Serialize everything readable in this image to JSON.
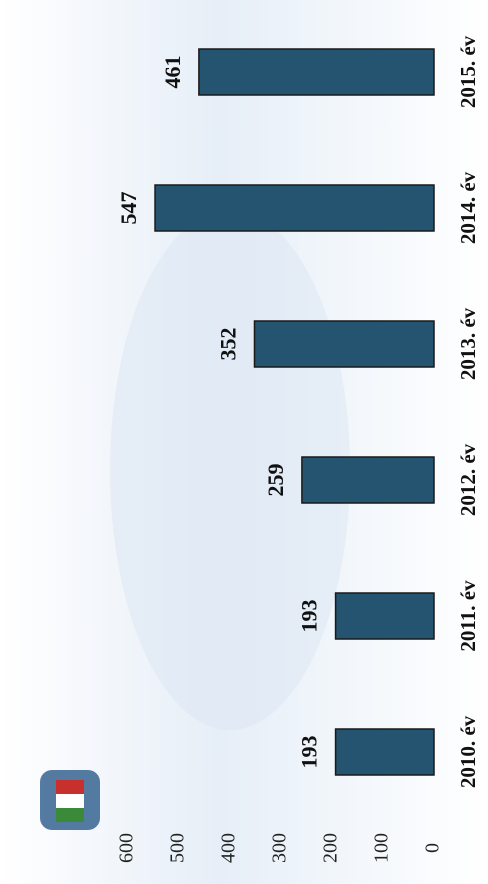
{
  "chart_data": {
    "type": "bar",
    "orientation": "rotated",
    "categories": [
      "2010. év",
      "2011. év",
      "2012. év",
      "2013. év",
      "2014. év",
      "2015. év"
    ],
    "values": [
      193,
      193,
      259,
      352,
      547,
      461
    ],
    "color": "#24546f",
    "ylim": [
      0,
      600
    ],
    "yticks": [
      0,
      100,
      200,
      300,
      400,
      500,
      600
    ]
  }
}
